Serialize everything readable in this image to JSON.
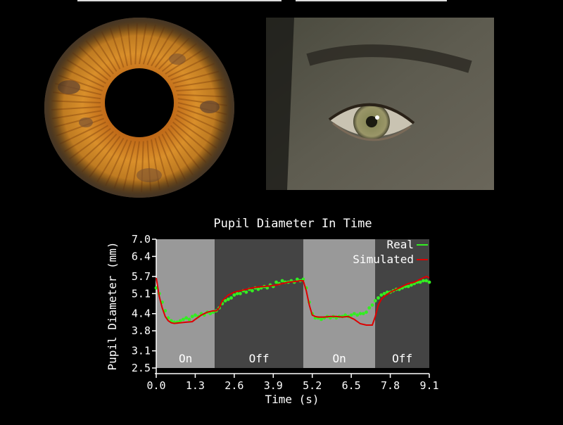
{
  "images": {
    "iris": "iris texture close-up",
    "eye": "photo of a man's eye"
  },
  "colors": {
    "real": "#33ee22",
    "simulated": "#dd0000",
    "on_band": "#999999",
    "off_band": "#444444"
  },
  "chart_data": {
    "type": "line",
    "title": "Pupil Diameter In Time",
    "xlabel": "Time (s)",
    "ylabel": "Pupil Diameter (mm)",
    "xlim": [
      0,
      9.1
    ],
    "ylim": [
      2.5,
      7.0
    ],
    "xticks": [
      0.0,
      1.3,
      2.6,
      3.9,
      5.2,
      6.5,
      7.8,
      9.1
    ],
    "xtick_labels": [
      "0.0",
      "1.3",
      "2.6",
      "3.9",
      "5.2",
      "6.5",
      "7.8",
      "9.1"
    ],
    "yticks": [
      2.5,
      3.1,
      3.8,
      4.4,
      5.1,
      5.7,
      6.4,
      7.0
    ],
    "ytick_labels": [
      "2.5",
      "3.1",
      "3.8",
      "4.4",
      "5.1",
      "5.7",
      "6.4",
      "7.0"
    ],
    "legend_position": "top-right",
    "grid": false,
    "regions": [
      {
        "label": "On",
        "start": 0.0,
        "end": 1.95
      },
      {
        "label": "Off",
        "start": 1.95,
        "end": 4.9
      },
      {
        "label": "On",
        "start": 4.9,
        "end": 7.3
      },
      {
        "label": "Off",
        "start": 7.3,
        "end": 9.1
      }
    ],
    "series": [
      {
        "name": "Real",
        "style": "points",
        "x": [
          0.0,
          0.1,
          0.2,
          0.3,
          0.4,
          0.5,
          0.6,
          0.7,
          0.8,
          0.9,
          1.0,
          1.1,
          1.2,
          1.3,
          1.4,
          1.5,
          1.6,
          1.7,
          1.8,
          1.9,
          2.0,
          2.1,
          2.2,
          2.3,
          2.4,
          2.5,
          2.6,
          2.7,
          2.8,
          2.9,
          3.0,
          3.1,
          3.2,
          3.3,
          3.4,
          3.5,
          3.6,
          3.7,
          3.8,
          3.9,
          4.0,
          4.1,
          4.2,
          4.3,
          4.4,
          4.5,
          4.6,
          4.7,
          4.8,
          4.9,
          5.0,
          5.1,
          5.2,
          5.3,
          5.4,
          5.5,
          5.6,
          5.7,
          5.8,
          5.9,
          6.0,
          6.1,
          6.2,
          6.3,
          6.4,
          6.5,
          6.6,
          6.7,
          6.8,
          6.9,
          7.0,
          7.1,
          7.2,
          7.3,
          7.4,
          7.5,
          7.6,
          7.7,
          7.8,
          7.9,
          8.0,
          8.1,
          8.2,
          8.3,
          8.4,
          8.5,
          8.6,
          8.7,
          8.8,
          8.9,
          9.0,
          9.1
        ],
        "values": [
          5.3,
          5.1,
          4.8,
          4.5,
          4.25,
          4.15,
          4.1,
          4.1,
          4.15,
          4.2,
          4.25,
          4.2,
          4.3,
          4.35,
          4.3,
          4.4,
          4.35,
          4.45,
          4.4,
          4.45,
          4.5,
          4.6,
          4.75,
          4.85,
          4.9,
          4.95,
          5.05,
          5.1,
          5.1,
          5.2,
          5.15,
          5.25,
          5.2,
          5.3,
          5.25,
          5.3,
          5.35,
          5.3,
          5.4,
          5.35,
          5.5,
          5.45,
          5.55,
          5.5,
          5.5,
          5.55,
          5.5,
          5.6,
          5.55,
          5.6,
          5.3,
          4.8,
          4.4,
          4.25,
          4.25,
          4.2,
          4.25,
          4.3,
          4.25,
          4.3,
          4.25,
          4.3,
          4.3,
          4.35,
          4.3,
          4.35,
          4.4,
          4.35,
          4.4,
          4.4,
          4.45,
          4.6,
          4.7,
          4.85,
          4.95,
          5.05,
          5.1,
          5.15,
          5.15,
          5.2,
          5.25,
          5.25,
          5.3,
          5.35,
          5.35,
          5.4,
          5.45,
          5.5,
          5.5,
          5.55,
          5.55,
          5.5
        ]
      },
      {
        "name": "Simulated",
        "style": "line",
        "x": [
          0.0,
          0.1,
          0.2,
          0.3,
          0.4,
          0.5,
          0.6,
          0.8,
          1.0,
          1.2,
          1.3,
          1.5,
          1.7,
          1.9,
          2.0,
          2.1,
          2.2,
          2.4,
          2.6,
          2.8,
          3.0,
          3.2,
          3.4,
          3.6,
          3.8,
          4.0,
          4.2,
          4.4,
          4.6,
          4.8,
          4.9,
          5.0,
          5.1,
          5.2,
          5.3,
          5.4,
          5.6,
          5.8,
          6.0,
          6.2,
          6.4,
          6.6,
          6.8,
          7.0,
          7.2,
          7.3,
          7.4,
          7.5,
          7.6,
          7.8,
          8.0,
          8.2,
          8.4,
          8.6,
          8.8,
          9.0,
          9.1
        ],
        "values": [
          5.65,
          5.0,
          4.6,
          4.3,
          4.15,
          4.08,
          4.06,
          4.08,
          4.1,
          4.12,
          4.2,
          4.35,
          4.45,
          4.5,
          4.5,
          4.6,
          4.85,
          5.05,
          5.15,
          5.2,
          5.25,
          5.3,
          5.33,
          5.35,
          5.37,
          5.4,
          5.45,
          5.5,
          5.52,
          5.55,
          5.55,
          5.2,
          4.7,
          4.35,
          4.3,
          4.28,
          4.28,
          4.3,
          4.3,
          4.28,
          4.3,
          4.2,
          4.05,
          4.0,
          4.0,
          4.3,
          4.7,
          4.9,
          5.0,
          5.15,
          5.25,
          5.35,
          5.45,
          5.5,
          5.6,
          5.7,
          5.65
        ]
      }
    ]
  }
}
